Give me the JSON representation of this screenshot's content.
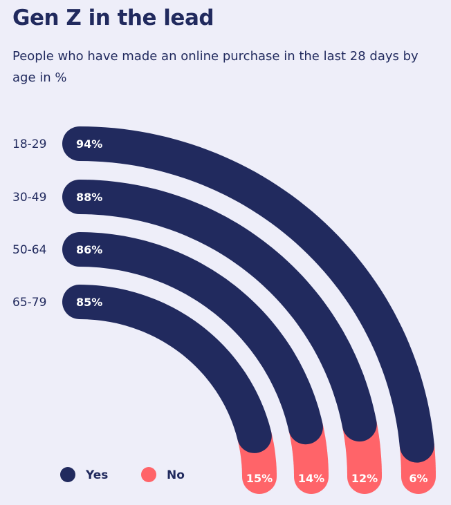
{
  "chart_data": {
    "type": "radial-bar",
    "title": "Gen Z in the lead",
    "subtitle": "People who have made an online purchase in the last 28 days by age in %",
    "categories": [
      "18-29",
      "30-49",
      "50-64",
      "65-79"
    ],
    "series": [
      {
        "name": "Yes",
        "color": "#212a5e",
        "values": [
          94,
          88,
          86,
          85
        ],
        "labels": [
          "94%",
          "88%",
          "86%",
          "85%"
        ]
      },
      {
        "name": "No",
        "color": "#ff6469",
        "values": [
          6,
          12,
          14,
          15
        ],
        "labels": [
          "6%",
          "12%",
          "14%",
          "15%"
        ]
      }
    ],
    "legend": {
      "position": "bottom-left",
      "items": [
        "Yes",
        "No"
      ]
    }
  }
}
